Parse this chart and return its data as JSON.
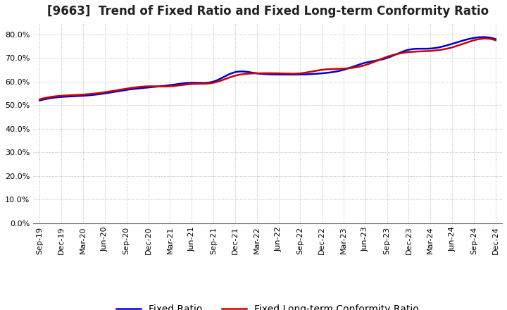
{
  "title": "[9663]  Trend of Fixed Ratio and Fixed Long-term Conformity Ratio",
  "xlabels": [
    "Sep-19",
    "Dec-19",
    "Mar-20",
    "Jun-20",
    "Sep-20",
    "Dec-20",
    "Mar-21",
    "Jun-21",
    "Sep-21",
    "Dec-21",
    "Mar-22",
    "Jun-22",
    "Sep-22",
    "Dec-22",
    "Mar-23",
    "Jun-23",
    "Sep-23",
    "Dec-23",
    "Mar-24",
    "Jun-24",
    "Sep-24",
    "Dec-24"
  ],
  "fixed_ratio": [
    52.0,
    53.5,
    54.0,
    55.0,
    56.5,
    57.5,
    58.5,
    59.5,
    60.0,
    64.0,
    63.5,
    63.0,
    63.0,
    63.5,
    65.0,
    68.0,
    70.0,
    73.5,
    74.0,
    76.0,
    78.5,
    78.0
  ],
  "fixed_lt_ratio": [
    52.5,
    54.0,
    54.5,
    55.5,
    57.0,
    58.0,
    58.0,
    59.0,
    59.5,
    62.5,
    63.5,
    63.5,
    63.5,
    65.0,
    65.5,
    67.0,
    70.5,
    72.5,
    73.0,
    74.5,
    77.5,
    77.5
  ],
  "fixed_ratio_color": "#0000CC",
  "fixed_lt_ratio_color": "#CC0000",
  "ylim": [
    0,
    85
  ],
  "yticks": [
    0,
    10,
    20,
    30,
    40,
    50,
    60,
    70,
    80
  ],
  "background_color": "#ffffff",
  "plot_bg_color": "#ffffff",
  "grid_color": "#aaaaaa",
  "title_fontsize": 12,
  "legend_fontsize": 10,
  "tick_fontsize": 8
}
